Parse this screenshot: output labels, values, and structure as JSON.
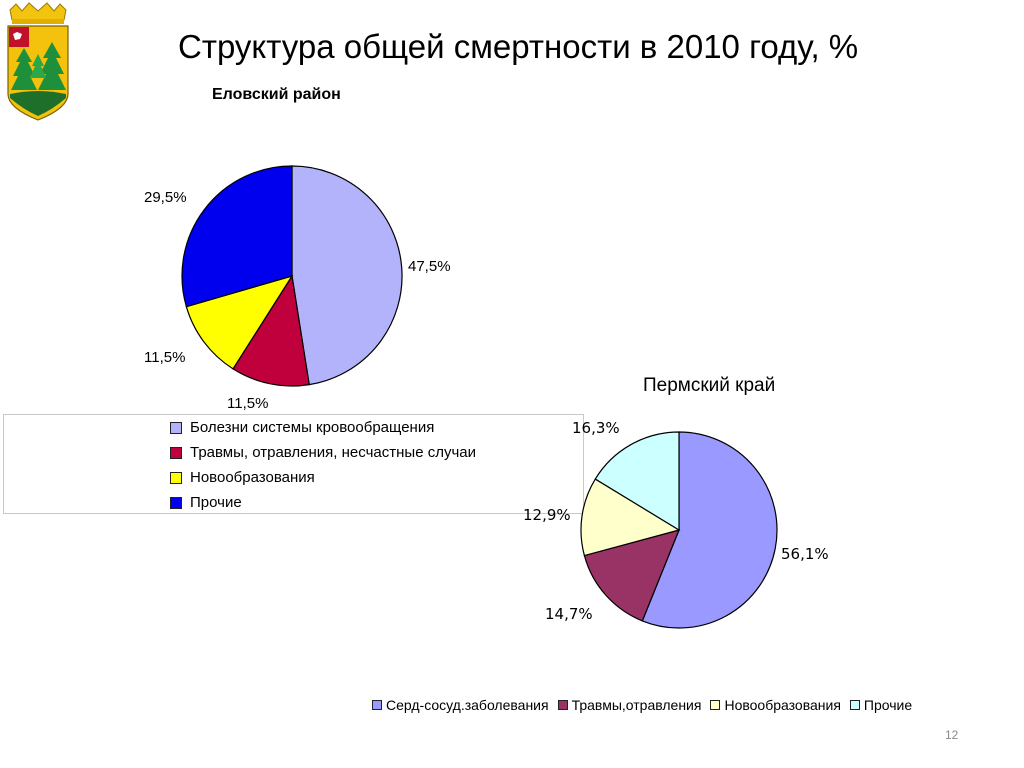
{
  "slide": {
    "title": "Структура общей смертности в 2010 году, %",
    "page_number": "12"
  },
  "chart_data": [
    {
      "type": "pie",
      "title": "Еловский район",
      "categories": [
        "Болезни системы кровообращения",
        "Травмы, отравления, несчастные случаи",
        "Новообразования",
        "Прочие"
      ],
      "values": [
        47.5,
        11.5,
        11.5,
        29.5
      ],
      "labels": [
        "47,5%",
        "11,5%",
        "11,5%",
        "29,5%"
      ],
      "colors": [
        "#b3b3fb",
        "#c0003c",
        "#ffff00",
        "#0000ee"
      ],
      "legend": "bottom-left"
    },
    {
      "type": "pie",
      "title": "Пермский край",
      "categories": [
        "Серд-сосуд.заболевания",
        "Травмы,отравления",
        "Новообразования",
        "Прочие"
      ],
      "values": [
        56.1,
        14.7,
        12.9,
        16.3
      ],
      "labels": [
        "56,1%",
        "14,7%",
        "12,9%",
        "16,3%"
      ],
      "colors": [
        "#9999ff",
        "#993366",
        "#ffffcc",
        "#ccffff"
      ],
      "legend": "bottom"
    }
  ]
}
